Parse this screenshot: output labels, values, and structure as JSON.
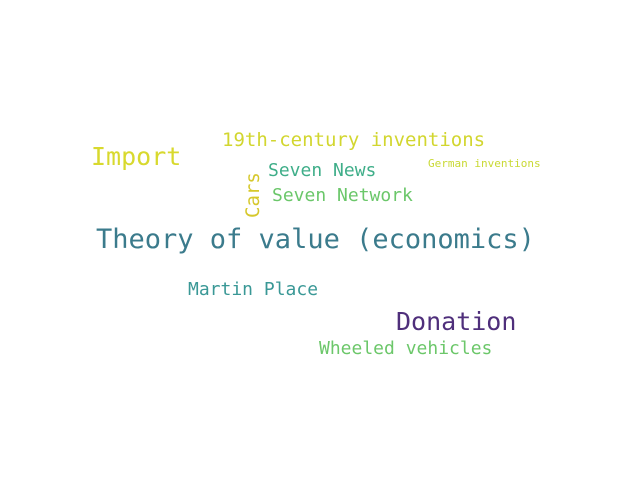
{
  "word_cloud": {
    "words": [
      {
        "key": "theory",
        "text": "Theory of value (economics)",
        "color": "#3b7b8c"
      },
      {
        "key": "import",
        "text": "Import",
        "color": "#d8d92e"
      },
      {
        "key": "donation",
        "text": "Donation",
        "color": "#4f2f7b"
      },
      {
        "key": "19th",
        "text": "19th-century inventions",
        "color": "#d2d62f"
      },
      {
        "key": "news",
        "text": "Seven News",
        "color": "#3fae89"
      },
      {
        "key": "network",
        "text": "Seven Network",
        "color": "#6bc76a"
      },
      {
        "key": "martin",
        "text": "Martin Place",
        "color": "#3a9896"
      },
      {
        "key": "wheeled",
        "text": "Wheeled vehicles",
        "color": "#6cc76a"
      },
      {
        "key": "german",
        "text": "German inventions",
        "color": "#c9d934"
      },
      {
        "key": "cars",
        "text": "Cars",
        "color": "#d6c82c"
      }
    ]
  }
}
